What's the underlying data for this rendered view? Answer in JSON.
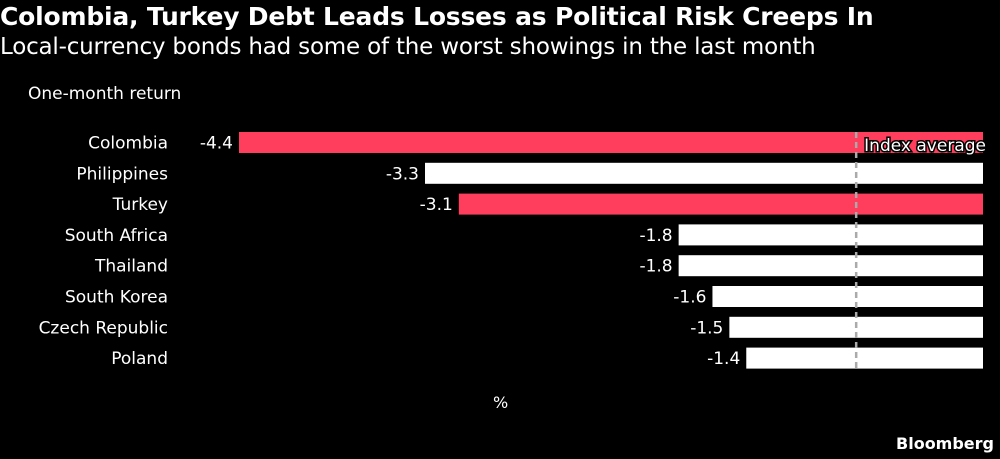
{
  "header": {
    "title": "Colombia, Turkey Debt Leads Losses as Political Risk Creeps In",
    "subtitle": "Local-currency bonds had some of the worst showings in the last month"
  },
  "footer": {
    "source": "Bloomberg"
  },
  "colors": {
    "background": "#000000",
    "highlight_bar": "#ff3d5d",
    "default_bar": "#ffffff",
    "text": "#ffffff",
    "reference_line": "#aaaaaa"
  },
  "chart_data": {
    "type": "bar",
    "orientation": "horizontal",
    "ylabel": "One-month return",
    "xlabel": "%",
    "categories": [
      "Colombia",
      "Philippines",
      "Turkey",
      "South Africa",
      "Thailand",
      "South Korea",
      "Czech Republic",
      "Poland"
    ],
    "values": [
      -4.4,
      -3.3,
      -3.1,
      -1.8,
      -1.8,
      -1.6,
      -1.5,
      -1.4
    ],
    "value_labels": [
      "-4.4",
      "-3.3",
      "-3.1",
      "-1.8",
      "-1.8",
      "-1.6",
      "-1.5",
      "-1.4"
    ],
    "highlighted": [
      "Colombia",
      "Turkey"
    ],
    "reference_line": {
      "label": "Index average",
      "value": -0.75
    },
    "xlim": [
      -4.4,
      0
    ],
    "grid": false,
    "legend": "none"
  }
}
